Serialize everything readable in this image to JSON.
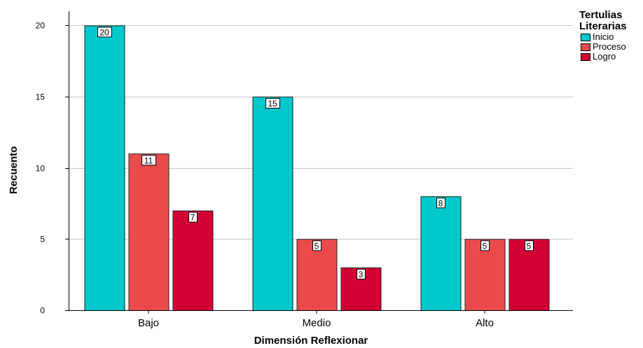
{
  "chart_data": {
    "type": "bar",
    "categories": [
      "Bajo",
      "Medio",
      "Alto"
    ],
    "series": [
      {
        "name": "Inicio",
        "values": [
          20,
          15,
          8
        ],
        "color": "#00c8cc"
      },
      {
        "name": "Proceso",
        "values": [
          11,
          5,
          5
        ],
        "color": "#ea4a4a"
      },
      {
        "name": "Logro",
        "values": [
          7,
          3,
          5
        ],
        "color": "#d20033"
      }
    ],
    "xlabel": "Dimensión Reflexionar",
    "ylabel": "Recuento",
    "ylim": [
      0,
      21
    ],
    "yticks": [
      0,
      5,
      10,
      15,
      20
    ],
    "grid": true,
    "legend_title_lines": [
      "Tertulias",
      "Literarias"
    ],
    "legend_position": "top-right",
    "data_labels": true
  }
}
